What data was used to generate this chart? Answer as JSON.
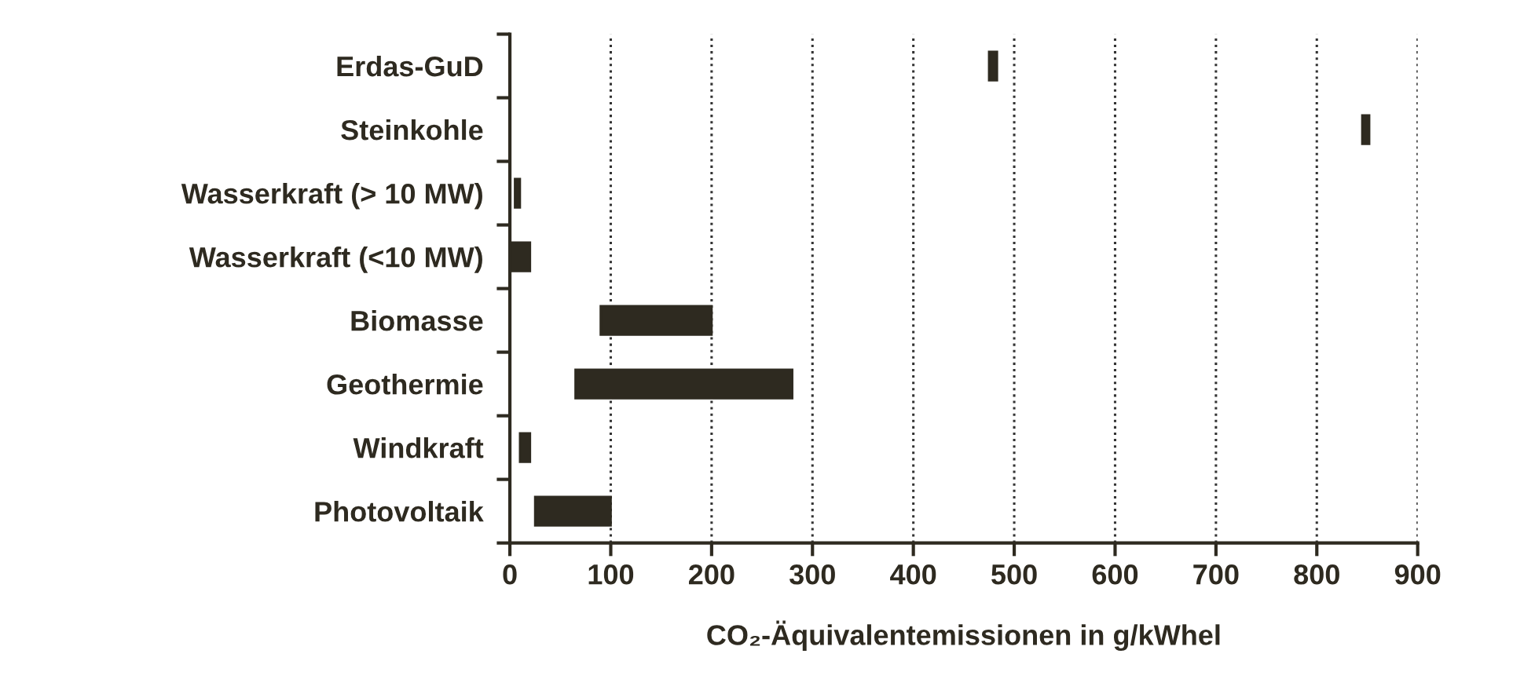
{
  "chart_data": {
    "type": "bar",
    "orientation": "horizontal",
    "categories": [
      "Erdas-GuD",
      "Steinkohle",
      "Wasserkraft (> 10 MW)",
      "Wasserkraft (<10 MW)",
      "Biomasse",
      "Geothermie",
      "Windkraft",
      "Photovoltaik"
    ],
    "base": [
      475,
      845,
      5,
      0,
      90,
      65,
      10,
      25
    ],
    "values": [
      8,
      7,
      5,
      20,
      110,
      215,
      10,
      75
    ],
    "color": "#2e2a20",
    "xlim": [
      0,
      900
    ],
    "xticks": [
      0,
      100,
      200,
      300,
      400,
      500,
      600,
      700,
      800,
      900
    ],
    "xlabel": "CO₂-Äquivalentemissionen in g/kWhel",
    "grid": "x",
    "line_style": "dotted"
  }
}
